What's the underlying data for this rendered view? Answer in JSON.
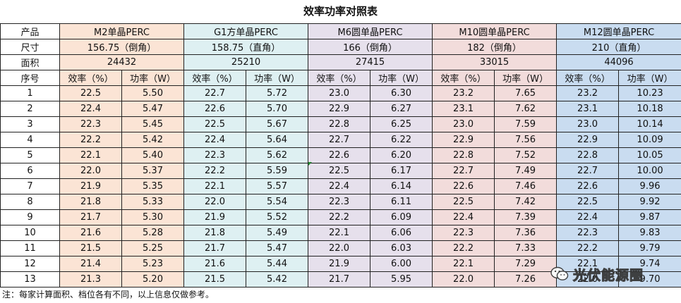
{
  "title": "效率功率对照表",
  "labels": {
    "product": "产品",
    "size": "尺寸",
    "area": "面积",
    "index": "序号"
  },
  "products": [
    {
      "name": "M2单晶PERC",
      "size": "156.75（倒角）",
      "area": "24432",
      "color": "#fbe4d5"
    },
    {
      "name": "G1方单晶PERC",
      "size": "158.75（直角）",
      "area": "25210",
      "color": "#def0f2"
    },
    {
      "name": "M6圆单晶PERC",
      "size": "166（倒角）",
      "area": "27415",
      "color": "#e6e0ec"
    },
    {
      "name": "M10圆单晶PERC",
      "size": "182（倒角）",
      "area": "33015",
      "color": "#f2dcdb"
    },
    {
      "name": "M12圆单晶PERC",
      "size": "210（直角）",
      "area": "44096",
      "color": "#c9dcf0"
    }
  ],
  "col_headers": {
    "efficiency": "效率（%）",
    "power": "功率（W）"
  },
  "rows": [
    {
      "idx": "1",
      "vals": [
        [
          "22.5",
          "5.50"
        ],
        [
          "22.7",
          "5.72"
        ],
        [
          "23.0",
          "6.30"
        ],
        [
          "23.2",
          "7.65"
        ],
        [
          "23.2",
          "10.23"
        ]
      ]
    },
    {
      "idx": "2",
      "vals": [
        [
          "22.4",
          "5.47"
        ],
        [
          "22.6",
          "5.70"
        ],
        [
          "22.9",
          "6.27"
        ],
        [
          "23.1",
          "7.62"
        ],
        [
          "23.1",
          "10.18"
        ]
      ]
    },
    {
      "idx": "3",
      "vals": [
        [
          "22.3",
          "5.45"
        ],
        [
          "22.5",
          "5.67"
        ],
        [
          "22.8",
          "6.25"
        ],
        [
          "23.0",
          "7.59"
        ],
        [
          "23.0",
          "10.14"
        ]
      ]
    },
    {
      "idx": "4",
      "vals": [
        [
          "22.2",
          "5.42"
        ],
        [
          "22.4",
          "5.64"
        ],
        [
          "22.7",
          "6.22"
        ],
        [
          "22.9",
          "7.56"
        ],
        [
          "22.9",
          "10.09"
        ]
      ]
    },
    {
      "idx": "5",
      "vals": [
        [
          "22.1",
          "5.40"
        ],
        [
          "22.3",
          "5.62"
        ],
        [
          "22.6",
          "6.20"
        ],
        [
          "22.8",
          "7.52"
        ],
        [
          "22.8",
          "10.05"
        ]
      ]
    },
    {
      "idx": "6",
      "vals": [
        [
          "22.0",
          "5.37"
        ],
        [
          "22.2",
          "5.59"
        ],
        [
          "22.5",
          "6.17"
        ],
        [
          "22.7",
          "7.49"
        ],
        [
          "22.7",
          "10.00"
        ]
      ]
    },
    {
      "idx": "7",
      "vals": [
        [
          "21.9",
          "5.35"
        ],
        [
          "22.1",
          "5.57"
        ],
        [
          "22.4",
          "6.14"
        ],
        [
          "22.6",
          "7.46"
        ],
        [
          "22.6",
          "9.96"
        ]
      ]
    },
    {
      "idx": "8",
      "vals": [
        [
          "21.8",
          "5.33"
        ],
        [
          "22.0",
          "5.54"
        ],
        [
          "22.3",
          "6.11"
        ],
        [
          "22.5",
          "7.42"
        ],
        [
          "22.5",
          "9.92"
        ]
      ]
    },
    {
      "idx": "9",
      "vals": [
        [
          "21.7",
          "5.30"
        ],
        [
          "21.9",
          "5.52"
        ],
        [
          "22.2",
          "6.09"
        ],
        [
          "22.4",
          "7.39"
        ],
        [
          "22.4",
          "9.87"
        ]
      ]
    },
    {
      "idx": "10",
      "vals": [
        [
          "21.6",
          "5.28"
        ],
        [
          "21.8",
          "5.49"
        ],
        [
          "22.1",
          "6.06"
        ],
        [
          "22.3",
          "7.36"
        ],
        [
          "22.3",
          "9.83"
        ]
      ]
    },
    {
      "idx": "11",
      "vals": [
        [
          "21.5",
          "5.25"
        ],
        [
          "21.7",
          "5.47"
        ],
        [
          "22.0",
          "6.03"
        ],
        [
          "22.2",
          "7.33"
        ],
        [
          "22.2",
          "9.79"
        ]
      ]
    },
    {
      "idx": "12",
      "vals": [
        [
          "21.4",
          "5.23"
        ],
        [
          "21.6",
          "5.44"
        ],
        [
          "21.9",
          "6.00"
        ],
        [
          "22.1",
          "7.29"
        ],
        [
          "22.1",
          "9.74"
        ]
      ]
    },
    {
      "idx": "13",
      "vals": [
        [
          "21.3",
          "5.20"
        ],
        [
          "21.5",
          "5.42"
        ],
        [
          "21.7",
          "5.95"
        ],
        [
          "22.0",
          "7.26"
        ],
        [
          "22.0",
          "9.70"
        ]
      ]
    }
  ],
  "note": "注：每家计算面积、档位各有不同，以上信息仅做参考。",
  "watermark": {
    "text": "光伏能源圈",
    "icon": "wechat-icon"
  }
}
